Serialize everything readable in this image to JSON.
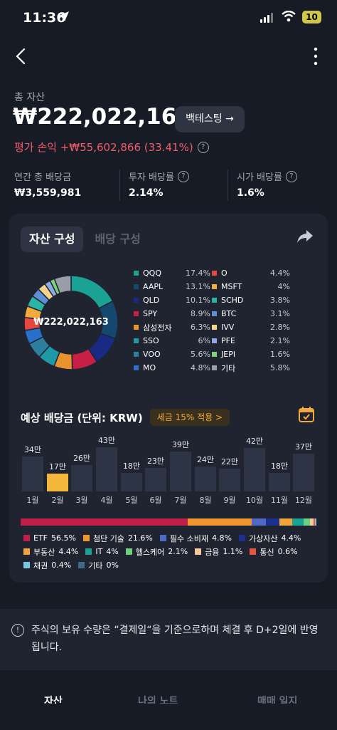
{
  "status": {
    "time": "11:36",
    "battery": "10"
  },
  "header": {
    "total_label": "총 자산",
    "total_amount": "₩222,022,163",
    "backtest_button": "백테스팅 →",
    "pnl": "평가 손익 +₩55,602,866 (33.41%)",
    "help": "?"
  },
  "kpis": [
    {
      "label": "연간 총 배당금",
      "value": "₩3,559,981",
      "help": ""
    },
    {
      "label": "투자 배당률",
      "value": "2.14%",
      "help": "?"
    },
    {
      "label": "시가 배당률",
      "value": "1.6%",
      "help": "?"
    }
  ],
  "card": {
    "tabs": [
      "자산 구성",
      "배당 구성"
    ],
    "donut_center": "₩222,022,163",
    "holdings": [
      {
        "name": "QQQ",
        "pct": "17.4%",
        "color": "#1aa394"
      },
      {
        "name": "AAPL",
        "pct": "13.1%",
        "color": "#15486f"
      },
      {
        "name": "QLD",
        "pct": "10.1%",
        "color": "#182a84"
      },
      {
        "name": "SPY",
        "pct": "8.9%",
        "color": "#c71f45"
      },
      {
        "name": "삼성전자",
        "pct": "6.3%",
        "color": "#e8932d"
      },
      {
        "name": "SSO",
        "pct": "6%",
        "color": "#1e9aa6"
      },
      {
        "name": "VOO",
        "pct": "5.6%",
        "color": "#2d7fa0"
      },
      {
        "name": "MO",
        "pct": "4.8%",
        "color": "#2a6fc9"
      },
      {
        "name": "O",
        "pct": "4.4%",
        "color": "#e7483d"
      },
      {
        "name": "MSFT",
        "pct": "4%",
        "color": "#f3a93c"
      },
      {
        "name": "SCHD",
        "pct": "3.8%",
        "color": "#2bb3a6"
      },
      {
        "name": "BTC",
        "pct": "3.1%",
        "color": "#5e8fd6"
      },
      {
        "name": "IVV",
        "pct": "2.8%",
        "color": "#f6d28b"
      },
      {
        "name": "PFE",
        "pct": "2.1%",
        "color": "#8da9e0"
      },
      {
        "name": "JEPI",
        "pct": "1.6%",
        "color": "#7ed27a"
      },
      {
        "name": "기타",
        "pct": "5.8%",
        "color": "#9a9ea8"
      }
    ],
    "dividend": {
      "title": "예상 배당금 (단위: KRW)",
      "tax_pill": "세금 15% 적용 >",
      "highlight_month": 2,
      "months": [
        {
          "month": "1월",
          "label": "34만",
          "value": 34
        },
        {
          "month": "2월",
          "label": "17만",
          "value": 17
        },
        {
          "month": "3월",
          "label": "26만",
          "value": 26
        },
        {
          "month": "4월",
          "label": "43만",
          "value": 43
        },
        {
          "month": "5월",
          "label": "18만",
          "value": 18
        },
        {
          "month": "6월",
          "label": "23만",
          "value": 23
        },
        {
          "month": "7월",
          "label": "39만",
          "value": 39
        },
        {
          "month": "8월",
          "label": "24만",
          "value": 24
        },
        {
          "month": "9월",
          "label": "22만",
          "value": 22
        },
        {
          "month": "10월",
          "label": "42만",
          "value": 42
        },
        {
          "month": "11월",
          "label": "18만",
          "value": 18
        },
        {
          "month": "12월",
          "label": "37만",
          "value": 37
        }
      ]
    },
    "sectors": [
      {
        "name": "ETF",
        "pct": "56.5%",
        "value": 56.5,
        "color": "#c11f48"
      },
      {
        "name": "첨단 기술",
        "pct": "21.6%",
        "value": 21.6,
        "color": "#f0962e"
      },
      {
        "name": "필수 소비재",
        "pct": "4.8%",
        "value": 4.8,
        "color": "#4f6ac6"
      },
      {
        "name": "가상자산",
        "pct": "4.4%",
        "value": 4.4,
        "color": "#1d2f8f"
      },
      {
        "name": "부동산",
        "pct": "4.4%",
        "value": 4.4,
        "color": "#f2a43a"
      },
      {
        "name": "IT",
        "pct": "4%",
        "value": 4,
        "color": "#1aa394"
      },
      {
        "name": "헬스케어",
        "pct": "2.1%",
        "value": 2.1,
        "color": "#6fd07d"
      },
      {
        "name": "금융",
        "pct": "1.1%",
        "value": 1.1,
        "color": "#f6c99a"
      },
      {
        "name": "통신",
        "pct": "0.6%",
        "value": 0.6,
        "color": "#e8563e"
      },
      {
        "name": "채권",
        "pct": "0.4%",
        "value": 0.4,
        "color": "#79c7e8"
      },
      {
        "name": "기타",
        "pct": "0%",
        "value": 0,
        "color": "#3d6a88"
      }
    ]
  },
  "notice": {
    "icon": "!",
    "text": "주식의 보유 수량은 “결제일“을 기준으로하며 체결 후 D+2일에 반영됩니다."
  },
  "bottom_nav": [
    "자산",
    "나의 노트",
    "매매 일지"
  ]
}
